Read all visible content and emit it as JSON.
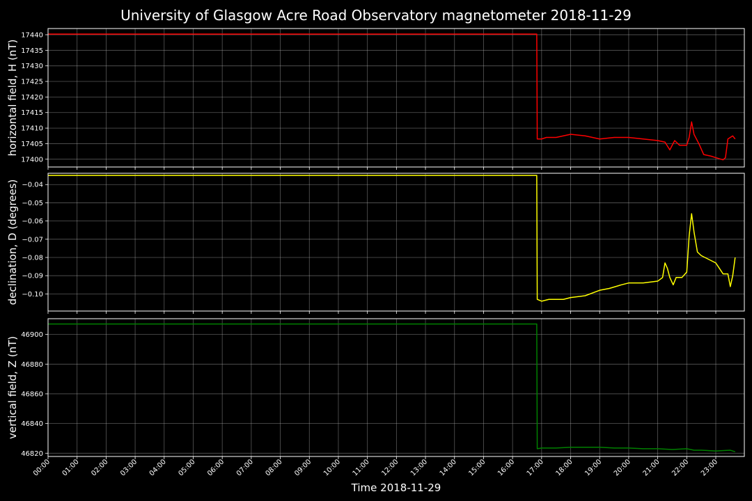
{
  "chart_data": {
    "type": "line",
    "title": "University of Glasgow Acre Road Observatory magnetometer 2018-11-29",
    "xlabel": "Time 2018-11-29",
    "x_ticks": [
      "00:00",
      "01:00",
      "02:00",
      "03:00",
      "04:00",
      "05:00",
      "06:00",
      "07:00",
      "08:00",
      "09:00",
      "10:00",
      "11:00",
      "12:00",
      "13:00",
      "14:00",
      "15:00",
      "16:00",
      "17:00",
      "18:00",
      "19:00",
      "20:00",
      "21:00",
      "22:00",
      "23:00"
    ],
    "xlim": [
      "00:00",
      "23:59"
    ],
    "grid": true,
    "background": "#000000",
    "panels": [
      {
        "name": "horizontal-field",
        "ylabel": "horizontal field, H (nT)",
        "color": "#ff0000",
        "ylim": [
          17397.5,
          17442
        ],
        "y_ticks": [
          17400,
          17405,
          17410,
          17415,
          17420,
          17425,
          17430,
          17435,
          17440
        ],
        "tick_labels": [
          "17400",
          "17405",
          "17410",
          "17415",
          "17420",
          "17425",
          "17430",
          "17435",
          "17440"
        ],
        "points": [
          [
            "00:00",
            17440.2
          ],
          [
            "16:50",
            17440.2
          ],
          [
            "16:51",
            17406.5
          ],
          [
            "17:00",
            17406.5
          ],
          [
            "17:10",
            17407
          ],
          [
            "17:30",
            17407
          ],
          [
            "18:00",
            17408
          ],
          [
            "18:30",
            17407.5
          ],
          [
            "19:00",
            17406.5
          ],
          [
            "19:30",
            17407
          ],
          [
            "20:00",
            17407
          ],
          [
            "20:30",
            17406.5
          ],
          [
            "21:00",
            17406
          ],
          [
            "21:15",
            17405.5
          ],
          [
            "21:25",
            17403
          ],
          [
            "21:35",
            17406
          ],
          [
            "21:45",
            17404.5
          ],
          [
            "22:00",
            17404.5
          ],
          [
            "22:05",
            17407
          ],
          [
            "22:10",
            17412
          ],
          [
            "22:15",
            17408
          ],
          [
            "22:25",
            17405
          ],
          [
            "22:35",
            17401.5
          ],
          [
            "22:50",
            17401
          ],
          [
            "23:00",
            17400.5
          ],
          [
            "23:15",
            17399.8
          ],
          [
            "23:20",
            17400.5
          ],
          [
            "23:25",
            17406.5
          ],
          [
            "23:35",
            17407.5
          ],
          [
            "23:40",
            17406.5
          ]
        ]
      },
      {
        "name": "declination",
        "ylabel": "declination, D (degrees)",
        "color": "#ffff00",
        "ylim": [
          -0.1094,
          -0.0338
        ],
        "y_ticks": [
          -0.1,
          -0.09,
          -0.08,
          -0.07,
          -0.06,
          -0.05,
          -0.04
        ],
        "tick_labels": [
          "−0.10",
          "−0.09",
          "−0.08",
          "−0.07",
          "−0.06",
          "−0.05",
          "−0.04"
        ],
        "points": [
          [
            "00:00",
            -0.035
          ],
          [
            "16:50",
            -0.035
          ],
          [
            "16:51",
            -0.103
          ],
          [
            "17:00",
            -0.104
          ],
          [
            "17:15",
            -0.103
          ],
          [
            "17:45",
            -0.103
          ],
          [
            "18:00",
            -0.102
          ],
          [
            "18:30",
            -0.101
          ],
          [
            "19:00",
            -0.098
          ],
          [
            "19:20",
            -0.097
          ],
          [
            "19:45",
            -0.095
          ],
          [
            "20:00",
            -0.094
          ],
          [
            "20:30",
            -0.094
          ],
          [
            "21:00",
            -0.093
          ],
          [
            "21:10",
            -0.091
          ],
          [
            "21:15",
            -0.083
          ],
          [
            "21:20",
            -0.086
          ],
          [
            "21:25",
            -0.091
          ],
          [
            "21:32",
            -0.095
          ],
          [
            "21:38",
            -0.091
          ],
          [
            "21:50",
            -0.091
          ],
          [
            "22:00",
            -0.088
          ],
          [
            "22:05",
            -0.068
          ],
          [
            "22:10",
            -0.056
          ],
          [
            "22:15",
            -0.066
          ],
          [
            "22:22",
            -0.077
          ],
          [
            "22:30",
            -0.079
          ],
          [
            "22:45",
            -0.081
          ],
          [
            "23:00",
            -0.083
          ],
          [
            "23:15",
            -0.089
          ],
          [
            "23:25",
            -0.089
          ],
          [
            "23:30",
            -0.096
          ],
          [
            "23:35",
            -0.09
          ],
          [
            "23:40",
            -0.08
          ]
        ]
      },
      {
        "name": "vertical-field",
        "ylabel": "vertical field, Z (nT)",
        "color": "#008000",
        "ylim": [
          46817.8,
          46910.6
        ],
        "y_ticks": [
          46820,
          46840,
          46860,
          46880,
          46900
        ],
        "tick_labels": [
          "46820",
          "46840",
          "46860",
          "46880",
          "46900"
        ],
        "points": [
          [
            "00:00",
            46907
          ],
          [
            "16:50",
            46907
          ],
          [
            "16:51",
            46823
          ],
          [
            "17:00",
            46823.5
          ],
          [
            "17:30",
            46823.5
          ],
          [
            "18:00",
            46824
          ],
          [
            "18:30",
            46824
          ],
          [
            "19:00",
            46824
          ],
          [
            "19:30",
            46823.5
          ],
          [
            "20:00",
            46823.5
          ],
          [
            "20:30",
            46823
          ],
          [
            "21:00",
            46823
          ],
          [
            "21:30",
            46822.5
          ],
          [
            "22:00",
            46823
          ],
          [
            "22:15",
            46822
          ],
          [
            "22:30",
            46822
          ],
          [
            "23:00",
            46821.5
          ],
          [
            "23:30",
            46822
          ],
          [
            "23:40",
            46821
          ]
        ]
      }
    ]
  }
}
